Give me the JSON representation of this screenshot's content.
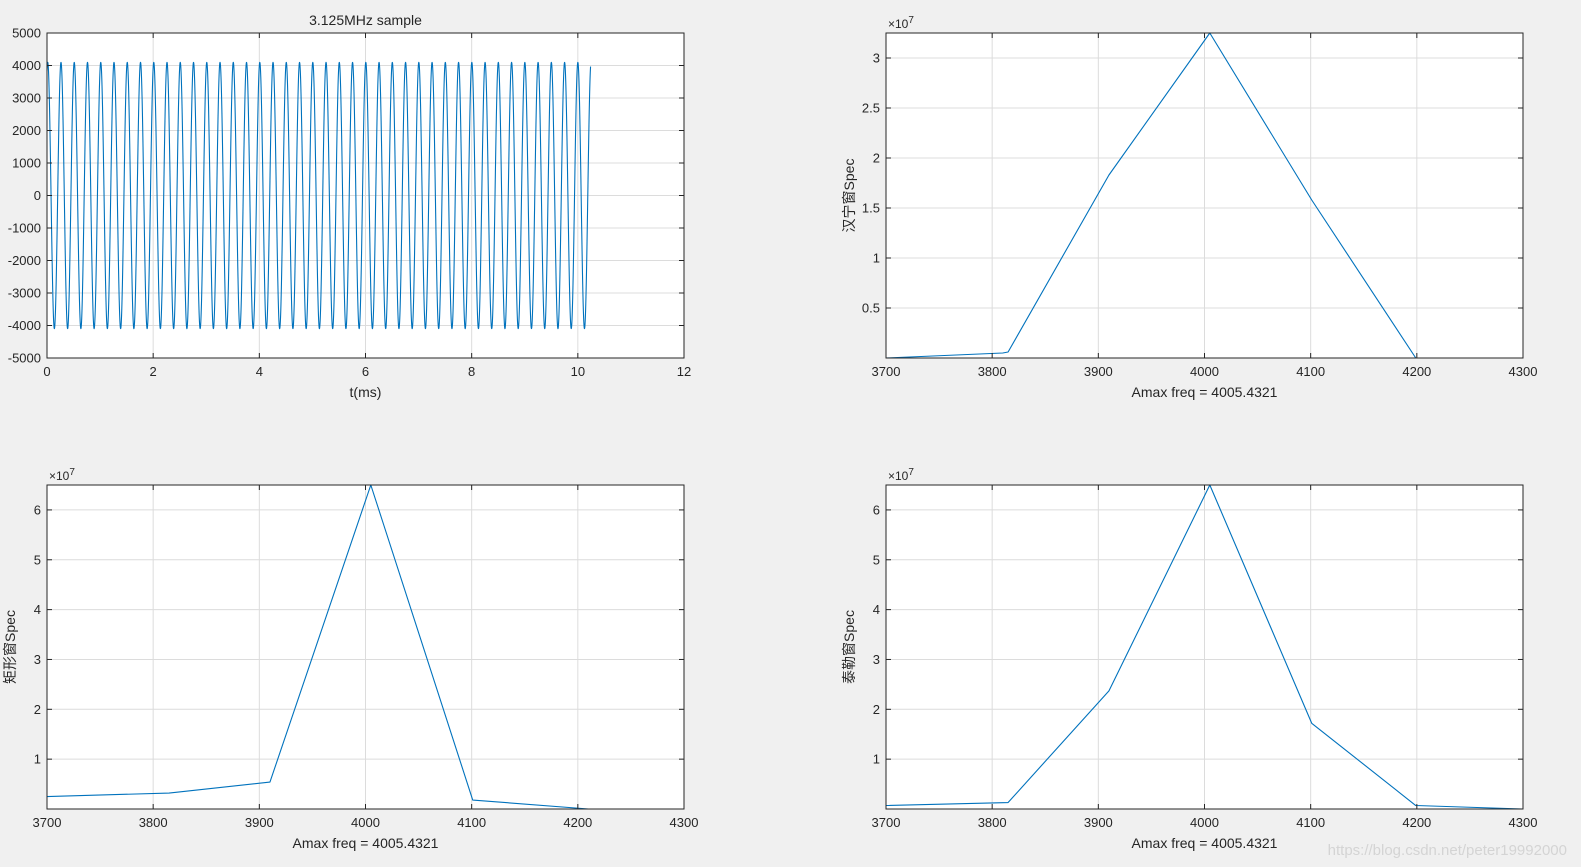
{
  "colors": {
    "figure_bg": "#f0f0f0",
    "axes_bg": "#ffffff",
    "axis": "#262626",
    "grid": "#dcdcdc",
    "line": "#0072bd"
  },
  "watermark": "https://blog.csdn.net/peter19992000",
  "chart_data": [
    {
      "id": "time",
      "type": "line",
      "title": "3.125MHz sample",
      "xlabel": "t(ms)",
      "ylabel": "",
      "xlim": [
        0,
        12
      ],
      "ylim": [
        -5000,
        5000
      ],
      "xticks": [
        0,
        2,
        4,
        6,
        8,
        10,
        12
      ],
      "xtick_labels": [
        "0",
        "2",
        "4",
        "6",
        "8",
        "10",
        "12"
      ],
      "yticks": [
        -5000,
        -4000,
        -3000,
        -2000,
        -1000,
        0,
        1000,
        2000,
        3000,
        4000,
        5000
      ],
      "ytick_labels": [
        "-5000",
        "-4000",
        "-3000",
        "-2000",
        "-1000",
        "0",
        "1000",
        "2000",
        "3000",
        "4000",
        "5000"
      ],
      "exponent": "",
      "grid": true,
      "signal": {
        "waveform": "sine",
        "amplitude": 4096,
        "frequency_khz": 4.0054321,
        "phase_deg": 70,
        "t_start_ms": 0,
        "t_end_ms": 10.24
      }
    },
    {
      "id": "hann",
      "type": "line",
      "title": "",
      "xlabel": "Amax freq = 4005.4321",
      "ylabel": "汉宁窗Spec",
      "xlim": [
        3700,
        4300
      ],
      "ylim": [
        0,
        32500000
      ],
      "xticks": [
        3700,
        3800,
        3900,
        4000,
        4100,
        4200,
        4300
      ],
      "xtick_labels": [
        "3700",
        "3800",
        "3900",
        "4000",
        "4100",
        "4200",
        "4300"
      ],
      "yticks": [
        5000000,
        10000000,
        15000000,
        20000000,
        25000000,
        30000000
      ],
      "ytick_labels": [
        "0.5",
        "1",
        "1.5",
        "2",
        "2.5",
        "3"
      ],
      "exponent": "×10",
      "exponent_power": "7",
      "grid": true,
      "x": [
        3700,
        3810,
        3815,
        3910,
        4005,
        4101,
        4199,
        4300
      ],
      "y": [
        0,
        500000,
        600000,
        18300000,
        32500000,
        15800000,
        0,
        0
      ]
    },
    {
      "id": "rect",
      "type": "line",
      "title": "",
      "xlabel": "Amax freq = 4005.4321",
      "ylabel": "矩形窗Spec",
      "xlim": [
        3700,
        4300
      ],
      "ylim": [
        0,
        65000000
      ],
      "xticks": [
        3700,
        3800,
        3900,
        4000,
        4100,
        4200,
        4300
      ],
      "xtick_labels": [
        "3700",
        "3800",
        "3900",
        "4000",
        "4100",
        "4200",
        "4300"
      ],
      "yticks": [
        10000000,
        20000000,
        30000000,
        40000000,
        50000000,
        60000000
      ],
      "ytick_labels": [
        "1",
        "2",
        "3",
        "4",
        "5",
        "6"
      ],
      "exponent": "×10",
      "exponent_power": "7",
      "grid": true,
      "x": [
        3700,
        3815,
        3910,
        4005,
        4101,
        4210,
        4300
      ],
      "y": [
        2500000,
        3200000,
        5400000,
        65000000,
        1800000,
        0,
        0
      ]
    },
    {
      "id": "taylor",
      "type": "line",
      "title": "",
      "xlabel": "Amax freq = 4005.4321",
      "ylabel": "泰勒窗Spec",
      "xlim": [
        3700,
        4300
      ],
      "ylim": [
        0,
        65000000
      ],
      "xticks": [
        3700,
        3800,
        3900,
        4000,
        4100,
        4200,
        4300
      ],
      "xtick_labels": [
        "3700",
        "3800",
        "3900",
        "4000",
        "4100",
        "4200",
        "4300"
      ],
      "yticks": [
        10000000,
        20000000,
        30000000,
        40000000,
        50000000,
        60000000
      ],
      "ytick_labels": [
        "1",
        "2",
        "3",
        "4",
        "5",
        "6"
      ],
      "exponent": "×10",
      "exponent_power": "7",
      "grid": true,
      "x": [
        3700,
        3815,
        3910,
        4005,
        4101,
        4199,
        4300
      ],
      "y": [
        700000,
        1300000,
        23700000,
        65000000,
        17200000,
        700000,
        0
      ]
    }
  ]
}
